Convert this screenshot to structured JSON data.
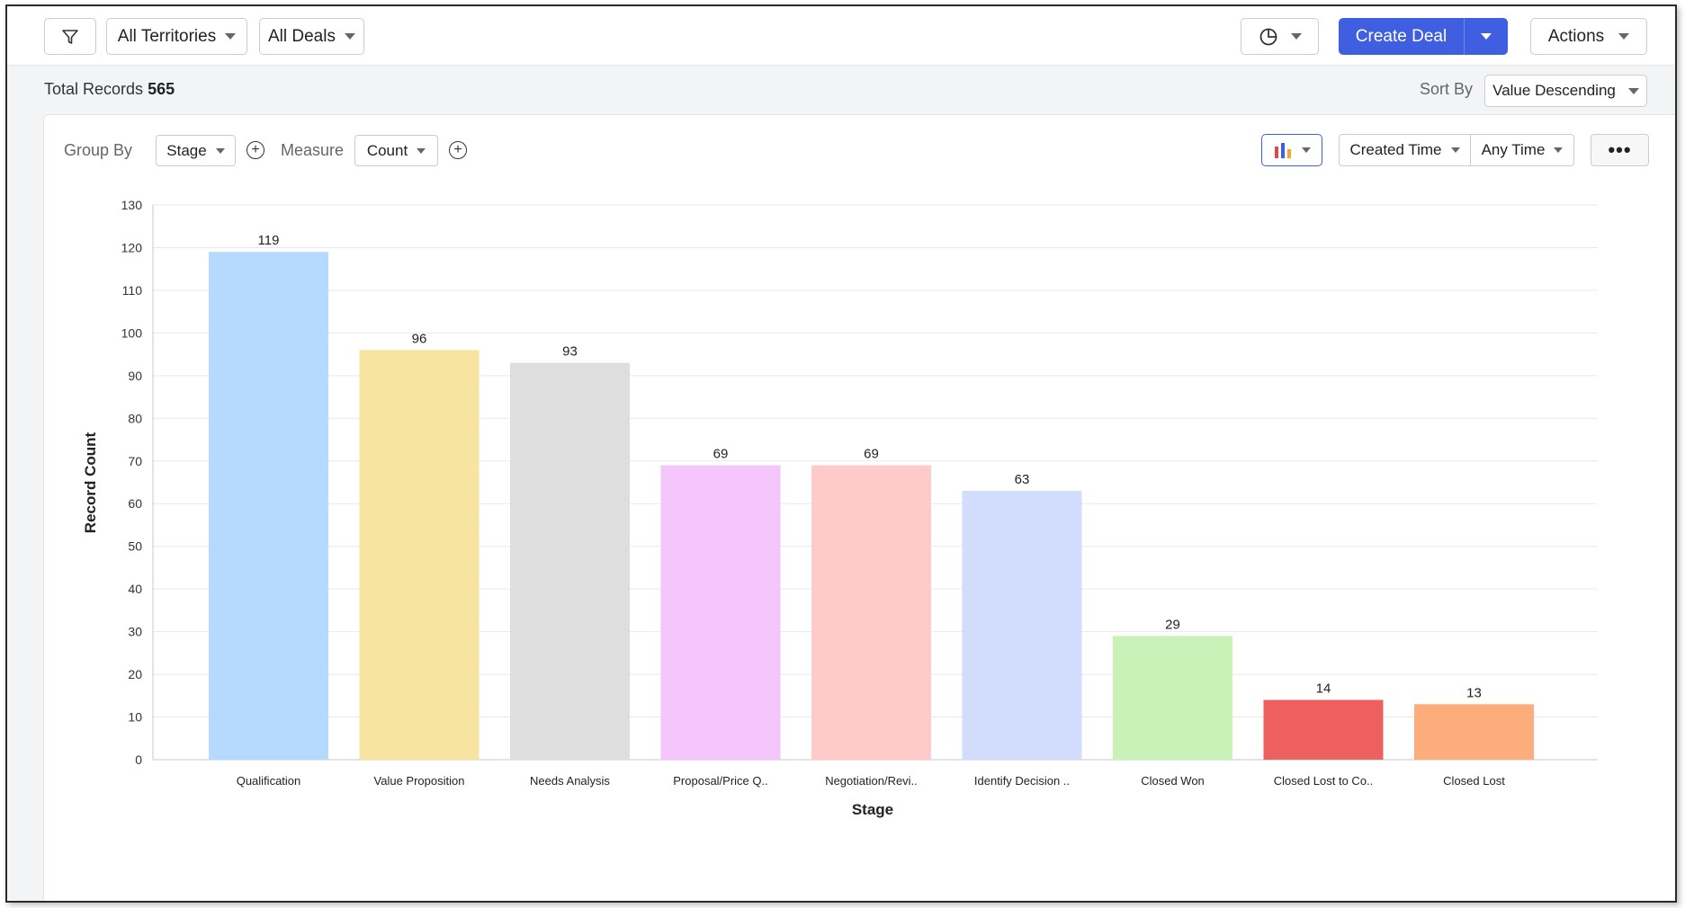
{
  "toolbar": {
    "territories_label": "All Territories",
    "deals_label": "All Deals",
    "create_label": "Create Deal",
    "actions_label": "Actions"
  },
  "summary": {
    "total_label": "Total Records",
    "total_value": "565",
    "sort_label": "Sort By",
    "sort_value": "Value Descending"
  },
  "controls": {
    "group_by_label": "Group By",
    "group_by_value": "Stage",
    "measure_label": "Measure",
    "measure_value": "Count",
    "time_field": "Created Time",
    "time_range": "Any Time",
    "more_label": "•••"
  },
  "colors": {
    "accent": "#3f5ee0"
  },
  "chart_data": {
    "type": "bar",
    "categories": [
      "Qualification",
      "Value Proposition",
      "Needs Analysis",
      "Proposal/Price Q..",
      "Negotiation/Revi..",
      "Identify Decision ..",
      "Closed Won",
      "Closed Lost to Co..",
      "Closed Lost"
    ],
    "values": [
      119,
      96,
      93,
      69,
      69,
      63,
      29,
      14,
      13
    ],
    "colors": [
      "#b5dafd",
      "#f8e4a1",
      "#dedede",
      "#f4c6fb",
      "#ffcaca",
      "#d2dcfc",
      "#c8f2b8",
      "#ee6060",
      "#fdad7c"
    ],
    "xlabel": "Stage",
    "ylabel": "Record Count",
    "ylim": [
      0,
      130
    ],
    "yticks": [
      0,
      10,
      20,
      30,
      40,
      50,
      60,
      70,
      80,
      90,
      100,
      110,
      120,
      130
    ],
    "grid": true,
    "data_labels": true
  }
}
